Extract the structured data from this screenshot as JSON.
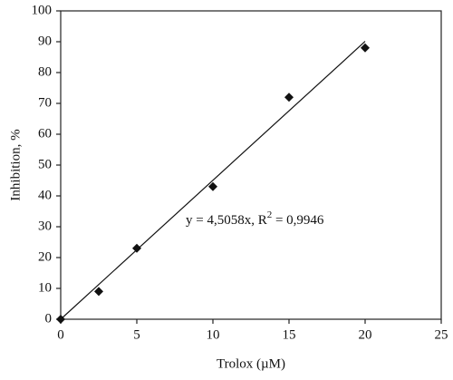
{
  "chart_data": {
    "type": "scatter",
    "xlabel": "Trolox (µM)",
    "ylabel": "Inhibition, %",
    "x": [
      0,
      2.5,
      5,
      10,
      15,
      20
    ],
    "series": [
      {
        "color": "#111111",
        "values": [
          0,
          9,
          23,
          43,
          72,
          88
        ]
      }
    ],
    "xlim": [
      0,
      25
    ],
    "xticks": [
      0,
      5,
      10,
      15,
      20,
      25
    ],
    "ylim": [
      0,
      100
    ],
    "yticks": [
      0,
      10,
      20,
      30,
      40,
      50,
      60,
      70,
      80,
      90,
      100
    ],
    "grid": false,
    "trendline": {
      "slope": 4.5058,
      "xrange": [
        0,
        20
      ],
      "color": "#111111"
    },
    "equation": {
      "text": "y = 4,5058x, R",
      "sup": "2",
      "rest": " = 0,9946"
    }
  }
}
